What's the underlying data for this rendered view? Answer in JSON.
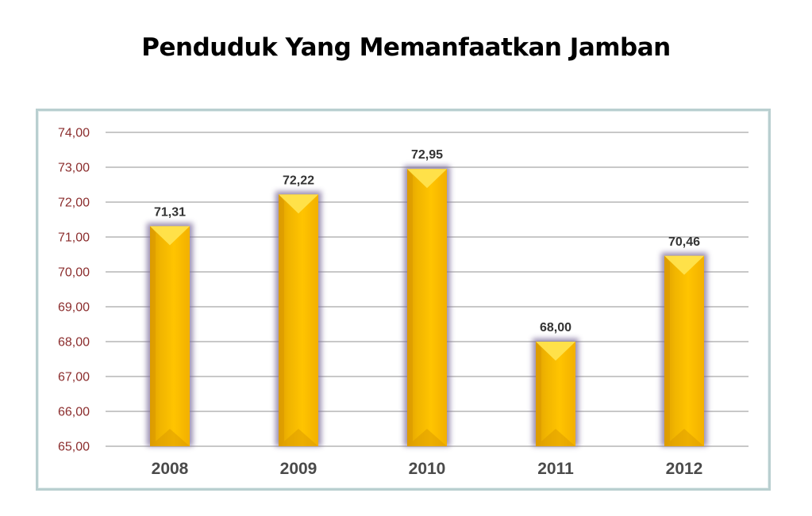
{
  "title": "Penduduk Yang Memanfaatkan Jamban",
  "chart_data": {
    "type": "bar",
    "title": "Penduduk Yang Memanfaatkan Jamban",
    "categories": [
      "2008",
      "2009",
      "2010",
      "2011",
      "2012"
    ],
    "values": [
      71.31,
      72.22,
      72.95,
      68.0,
      70.46
    ],
    "data_labels": [
      "71,31",
      "72,22",
      "72,95",
      "68,00",
      "70,46"
    ],
    "ylim": [
      65,
      74
    ],
    "yticks": [
      65,
      66,
      67,
      68,
      69,
      70,
      71,
      72,
      73,
      74
    ],
    "ytick_labels": [
      "65,00",
      "66,00",
      "67,00",
      "68,00",
      "69,00",
      "70,00",
      "71,00",
      "72,00",
      "73,00",
      "74,00"
    ],
    "grid": true,
    "legend": "none",
    "colors": {
      "bar": "#f5b800",
      "bar_light": "#ffe34d",
      "bar_dark": "#d99800",
      "glow": "#7a6a9a",
      "grid": "#a8a8a8",
      "ytick": "#8b2d2d",
      "xtick": "#4a4a4a"
    }
  }
}
